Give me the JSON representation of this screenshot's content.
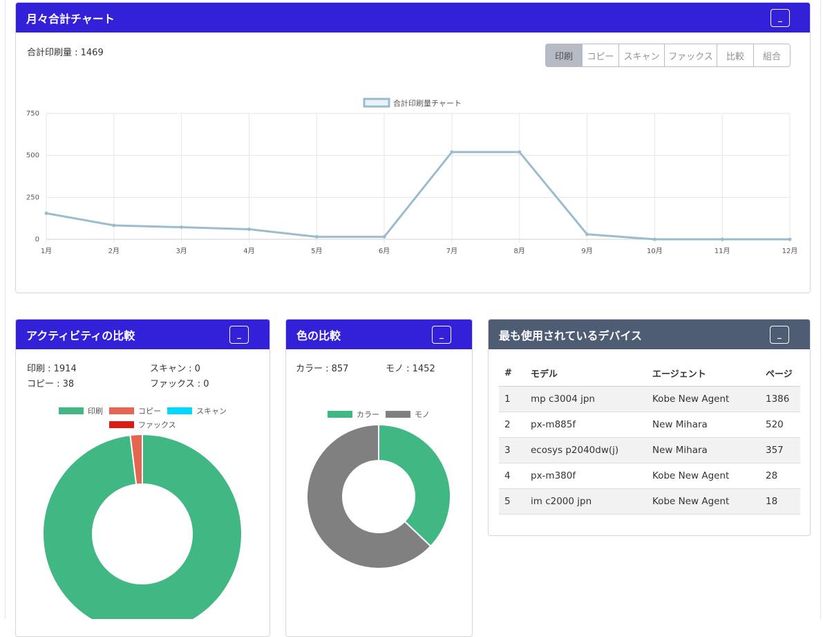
{
  "monthly": {
    "title": "月々合計チャート",
    "minimize": "_",
    "total_label": "合計印刷量 : 1469",
    "buttons": [
      "印刷",
      "コピー",
      "スキャン",
      "ファックス",
      "比較",
      "組合"
    ],
    "active_button": "印刷"
  },
  "chart_data": [
    {
      "type": "line",
      "x": [
        "1月",
        "2月",
        "3月",
        "4月",
        "5月",
        "6月",
        "7月",
        "8月",
        "9月",
        "10月",
        "11月",
        "12月"
      ],
      "series": [
        {
          "name": "合計印刷量チャート",
          "values": [
            155,
            83,
            72,
            60,
            15,
            15,
            520,
            520,
            30,
            0,
            0,
            0
          ]
        }
      ],
      "yticks": [
        0,
        250,
        500,
        750
      ],
      "ylim": [
        0,
        750
      ],
      "grid": true,
      "legend_position": "top",
      "colors": {
        "line": "#9bbccc",
        "legend_fill": "#e9f2f6"
      }
    },
    {
      "type": "pie",
      "hole": true,
      "labels": [
        "印刷",
        "コピー",
        "スキャン",
        "ファックス"
      ],
      "values": [
        1914,
        38,
        0,
        0
      ],
      "colors": [
        "#41b883",
        "#e46651",
        "#00d8ff",
        "#dd1b16"
      ],
      "legend_position": "top"
    },
    {
      "type": "pie",
      "hole": true,
      "labels": [
        "カラー",
        "モノ"
      ],
      "values": [
        857,
        1452
      ],
      "colors": [
        "#41b883",
        "#808080"
      ],
      "legend_position": "top"
    }
  ],
  "activity": {
    "title": "アクティビティの比較",
    "minimize": "_",
    "stats": [
      "印刷 : 1914",
      "スキャン : 0",
      "コピー : 38",
      "ファックス : 0"
    ]
  },
  "color": {
    "title": "色の比較",
    "minimize": "_",
    "stats": [
      "カラー : 857",
      "モノ : 1452"
    ]
  },
  "devices": {
    "title": "最も使用されているデバイス",
    "minimize": "_",
    "headers": [
      "#",
      "モデル",
      "エージェント",
      "ページ"
    ],
    "rows": [
      [
        "1",
        "mp c3004 jpn",
        "Kobe New Agent",
        "1386"
      ],
      [
        "2",
        "px-m885f",
        "New Mihara",
        "520"
      ],
      [
        "3",
        "ecosys p2040dw(j)",
        "New Mihara",
        "357"
      ],
      [
        "4",
        "px-m380f",
        "Kobe New Agent",
        "28"
      ],
      [
        "5",
        "im c2000 jpn",
        "Kobe New Agent",
        "18"
      ]
    ]
  }
}
